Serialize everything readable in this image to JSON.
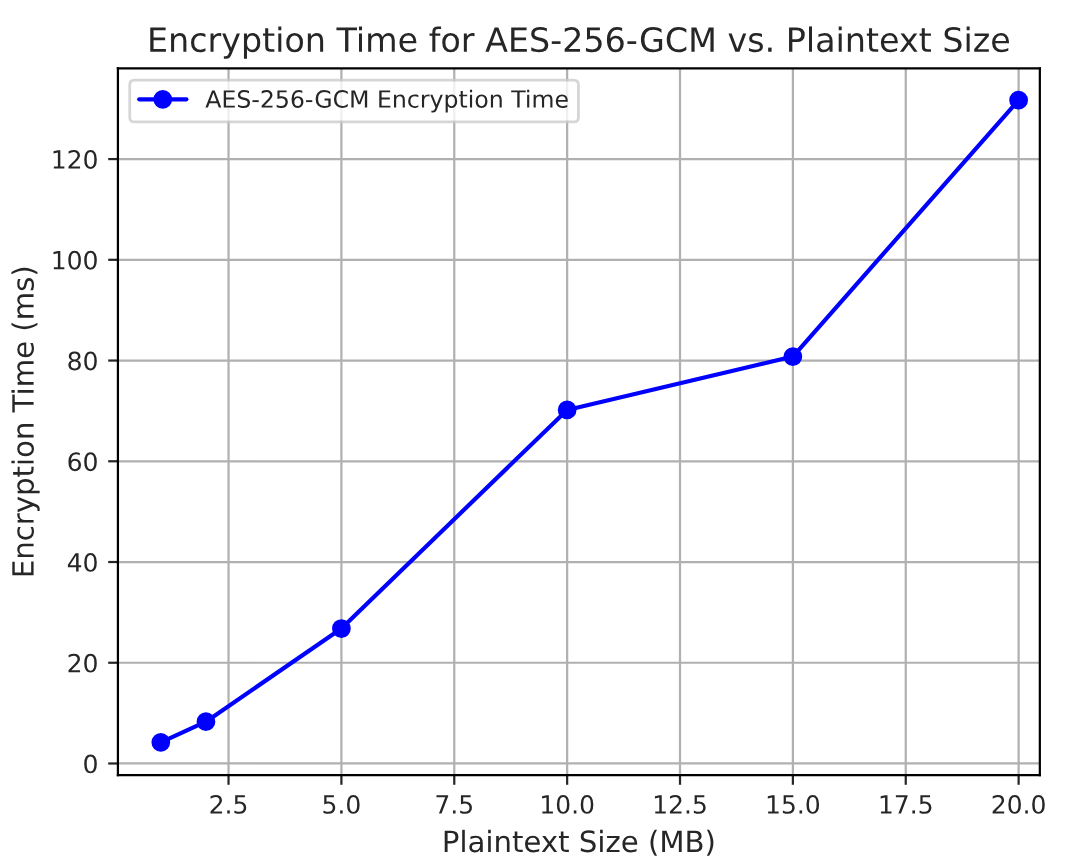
{
  "chart_data": {
    "type": "line",
    "title": "Encryption Time for AES-256-GCM vs. Plaintext Size",
    "xlabel": "Plaintext Size (MB)",
    "ylabel": "Encryption Time (ms)",
    "x": [
      1,
      2,
      5,
      10,
      15,
      20
    ],
    "series": [
      {
        "name": "AES-256-GCM Encryption Time",
        "color": "#0000ff",
        "values": [
          4.2,
          8.3,
          26.8,
          70.2,
          80.8,
          131.7
        ]
      }
    ],
    "xlim": [
      0.05,
      20.47
    ],
    "xticks": [
      {
        "value": 2.5,
        "label": "2.5"
      },
      {
        "value": 5,
        "label": "5.0"
      },
      {
        "value": 7.5,
        "label": "7.5"
      },
      {
        "value": 10,
        "label": "10.0"
      },
      {
        "value": 12.5,
        "label": "12.5"
      },
      {
        "value": 15,
        "label": "15.0"
      },
      {
        "value": 17.5,
        "label": "17.5"
      },
      {
        "value": 20,
        "label": "20.0"
      }
    ],
    "ylim": [
      -2.3,
      138
    ],
    "yticks": [
      0,
      20,
      40,
      60,
      80,
      100,
      120
    ],
    "grid": true,
    "legend": "top left",
    "marker": "circle",
    "line_style": "solid"
  }
}
